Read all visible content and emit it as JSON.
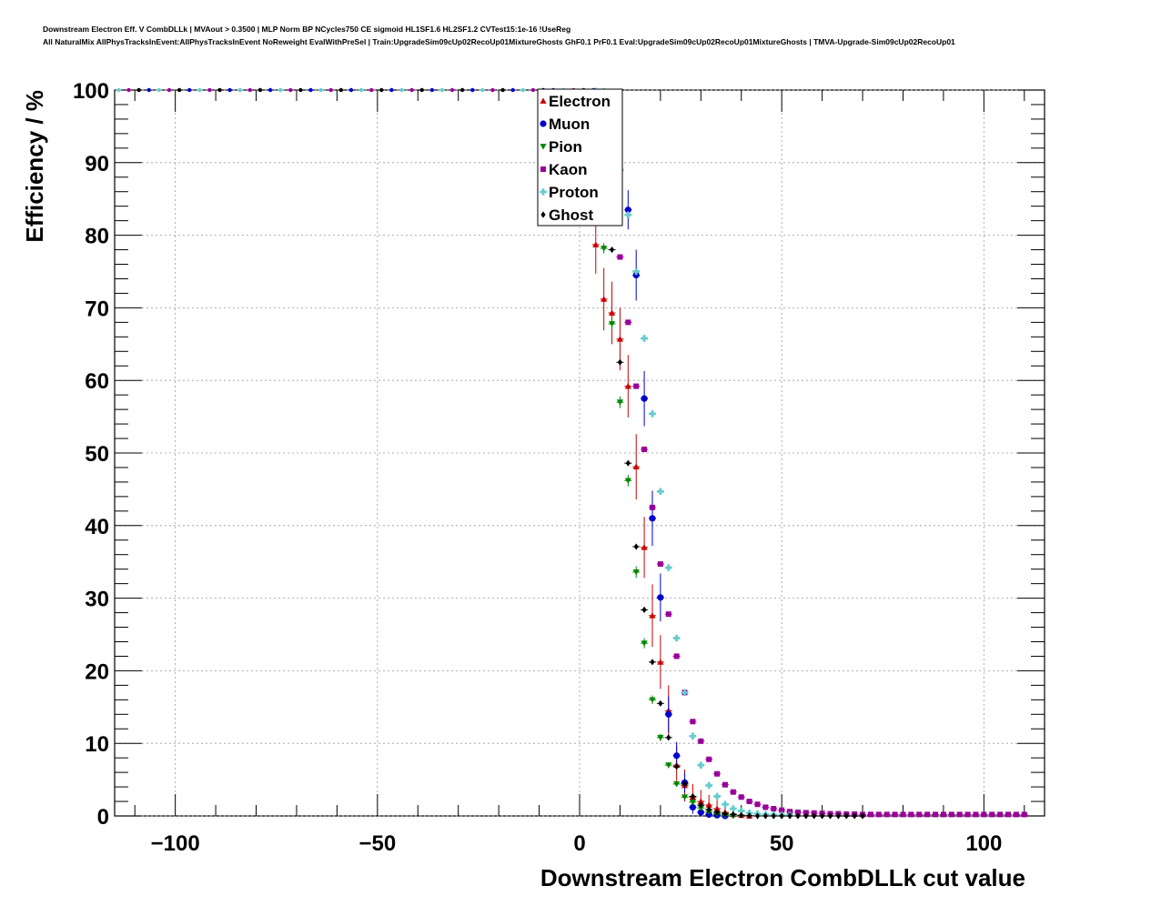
{
  "header": {
    "title_line1": "Downstream Electron Eff. V CombDLLk | MVAout > 0.3500 | MLP Norm BP NCycles750 CE sigmoid HL1SF1.6 HL2SF1.2 CVTest15:1e-16 !UseReg",
    "title_line2": "All NaturalMix AllPhysTracksInEvent:AllPhysTracksInEvent NoReweight EvalWithPreSel | Train:UpgradeSim09cUp02RecoUp01MixtureGhosts GhF0.1 PrF0.1 Eval:UpgradeSim09cUp02RecoUp01MixtureGhosts | TMVA-Upgrade-Sim09cUp02RecoUp01"
  },
  "chart_data": {
    "type": "scatter",
    "xlabel": "Downstream Electron CombDLLk cut value",
    "ylabel": "Efficiency / %",
    "xlim": [
      -115,
      115
    ],
    "ylim": [
      0,
      100
    ],
    "x_ticks": [
      -100,
      -50,
      0,
      50,
      100
    ],
    "x_tick_labels": [
      "−100",
      "−50",
      "0",
      "50",
      "100"
    ],
    "y_ticks": [
      0,
      10,
      20,
      30,
      40,
      50,
      60,
      70,
      80,
      90,
      100
    ],
    "y_tick_labels": [
      "0",
      "10",
      "20",
      "30",
      "40",
      "50",
      "60",
      "70",
      "80",
      "90",
      "100"
    ],
    "grid": true,
    "legend_position": "top-center",
    "series": [
      {
        "name": "Electron",
        "color": "#cc0000",
        "marker": "triangle-up",
        "points": [
          [
            -4,
            99.5
          ],
          [
            -2,
            98
          ],
          [
            0,
            95
          ],
          [
            2,
            88
          ],
          [
            4,
            78.7
          ],
          [
            6,
            71.2
          ],
          [
            8,
            69.3
          ],
          [
            10,
            65.7
          ],
          [
            12,
            59.2
          ],
          [
            14,
            48.1
          ],
          [
            16,
            37
          ],
          [
            18,
            27.6
          ],
          [
            20,
            21.2
          ],
          [
            22,
            14.5
          ],
          [
            24,
            7
          ],
          [
            26,
            4.2
          ],
          [
            28,
            2.6
          ],
          [
            30,
            2
          ],
          [
            32,
            1.5
          ],
          [
            34,
            1
          ],
          [
            36,
            0.5
          ],
          [
            38,
            0.2
          ],
          [
            40,
            0.1
          ],
          [
            42,
            0
          ]
        ],
        "errors": [
          0.5,
          1.5,
          2.5,
          3.5,
          4,
          4.3,
          4.3,
          4.3,
          4.3,
          4.5,
          4.2,
          4.3,
          3.7,
          3.5,
          2.7,
          2.2,
          1.8,
          1.6,
          1.4,
          1.2,
          0.8,
          0.5,
          0.3,
          0.1
        ]
      },
      {
        "name": "Muon",
        "color": "#0000cc",
        "marker": "circle",
        "points": [
          [
            4,
            99.8
          ],
          [
            6,
            97
          ],
          [
            8,
            92.5
          ],
          [
            10,
            89
          ],
          [
            12,
            83.5
          ],
          [
            14,
            74.5
          ],
          [
            16,
            57.5
          ],
          [
            18,
            41
          ],
          [
            20,
            30.1
          ],
          [
            22,
            14
          ],
          [
            24,
            8.3
          ],
          [
            26,
            4.6
          ],
          [
            28,
            1.2
          ],
          [
            30,
            0.5
          ],
          [
            32,
            0.2
          ],
          [
            34,
            0.1
          ],
          [
            36,
            0
          ]
        ],
        "errors": [
          0.5,
          1.2,
          1.8,
          2,
          2.7,
          3.5,
          3.8,
          3.8,
          3.3,
          2.5,
          1.9,
          1.4,
          0.9,
          0.5,
          0.3,
          0.2,
          0.1
        ]
      },
      {
        "name": "Pion",
        "color": "#008800",
        "marker": "triangle-down",
        "points": [
          [
            0,
            99
          ],
          [
            2,
            95.5
          ],
          [
            4,
            88
          ],
          [
            6,
            78.2
          ],
          [
            8,
            67.8
          ],
          [
            10,
            57
          ],
          [
            12,
            46.2
          ],
          [
            14,
            33.6
          ],
          [
            16,
            23.8
          ],
          [
            18,
            16
          ],
          [
            20,
            10.8
          ],
          [
            22,
            7
          ],
          [
            24,
            4.4
          ],
          [
            26,
            2.6
          ],
          [
            28,
            1.9
          ],
          [
            30,
            1.1
          ],
          [
            32,
            0.6
          ],
          [
            34,
            0.3
          ],
          [
            36,
            0.1
          ],
          [
            38,
            0
          ]
        ],
        "errors": [
          0.3,
          0.5,
          0.7,
          0.7,
          0.8,
          0.8,
          0.8,
          0.8,
          0.7,
          0.6,
          0.5,
          0.4,
          0.3,
          0.3,
          0.2,
          0.2,
          0.1,
          0.1,
          0.1,
          0
        ]
      },
      {
        "name": "Kaon",
        "color": "#990099",
        "marker": "square",
        "points": [
          [
            4,
            99.5
          ],
          [
            6,
            93
          ],
          [
            8,
            85.7
          ],
          [
            10,
            77
          ],
          [
            12,
            68
          ],
          [
            14,
            59.2
          ],
          [
            16,
            50.5
          ],
          [
            18,
            42.5
          ],
          [
            20,
            34.7
          ],
          [
            22,
            27.8
          ],
          [
            24,
            22
          ],
          [
            26,
            17
          ],
          [
            28,
            13
          ],
          [
            30,
            10.3
          ],
          [
            32,
            7.8
          ],
          [
            34,
            5.8
          ],
          [
            36,
            4.3
          ],
          [
            38,
            3.3
          ],
          [
            40,
            2.6
          ],
          [
            42,
            2
          ],
          [
            44,
            1.6
          ],
          [
            46,
            1.2
          ],
          [
            48,
            1
          ],
          [
            50,
            0.8
          ],
          [
            52,
            0.6
          ],
          [
            54,
            0.5
          ],
          [
            56,
            0.45
          ],
          [
            58,
            0.4
          ],
          [
            60,
            0.35
          ],
          [
            62,
            0.3
          ],
          [
            64,
            0.3
          ],
          [
            66,
            0.25
          ],
          [
            68,
            0.25
          ],
          [
            70,
            0.2
          ],
          [
            72,
            0.2
          ],
          [
            74,
            0.2
          ],
          [
            76,
            0.2
          ],
          [
            78,
            0.2
          ],
          [
            80,
            0.2
          ],
          [
            82,
            0.2
          ],
          [
            84,
            0.2
          ],
          [
            86,
            0.2
          ],
          [
            88,
            0.2
          ],
          [
            90,
            0.2
          ],
          [
            92,
            0.2
          ],
          [
            94,
            0.2
          ],
          [
            96,
            0.2
          ],
          [
            98,
            0.2
          ],
          [
            100,
            0.2
          ],
          [
            102,
            0.2
          ],
          [
            104,
            0.2
          ],
          [
            106,
            0.2
          ],
          [
            108,
            0.2
          ],
          [
            110,
            0.2
          ]
        ],
        "errors": []
      },
      {
        "name": "Proton",
        "color": "#66cccc",
        "marker": "cross",
        "points": [
          [
            4,
            99.8
          ],
          [
            6,
            98
          ],
          [
            8,
            94.2
          ],
          [
            10,
            89
          ],
          [
            12,
            82.8
          ],
          [
            14,
            75
          ],
          [
            16,
            65.8
          ],
          [
            18,
            55.4
          ],
          [
            20,
            44.7
          ],
          [
            22,
            34.2
          ],
          [
            24,
            24.5
          ],
          [
            26,
            17
          ],
          [
            28,
            11
          ],
          [
            30,
            7
          ],
          [
            32,
            4.2
          ],
          [
            34,
            2.7
          ],
          [
            36,
            1.6
          ],
          [
            38,
            1
          ],
          [
            40,
            0.7
          ],
          [
            42,
            0.4
          ],
          [
            44,
            0.3
          ],
          [
            46,
            0.2
          ],
          [
            48,
            0.15
          ],
          [
            50,
            0.1
          ],
          [
            52,
            0.1
          ]
        ],
        "errors": []
      },
      {
        "name": "Ghost",
        "color": "#000000",
        "marker": "diamond",
        "points": [
          [
            4,
            99.5
          ],
          [
            6,
            94
          ],
          [
            8,
            78
          ],
          [
            10,
            62.5
          ],
          [
            12,
            48.6
          ],
          [
            14,
            37.1
          ],
          [
            16,
            28.4
          ],
          [
            18,
            21.2
          ],
          [
            20,
            15.5
          ],
          [
            22,
            10.8
          ],
          [
            24,
            6.8
          ],
          [
            26,
            4.4
          ],
          [
            28,
            2.7
          ],
          [
            30,
            1.5
          ],
          [
            32,
            0.9
          ],
          [
            34,
            0.5
          ],
          [
            36,
            0.3
          ],
          [
            38,
            0.2
          ],
          [
            40,
            0.1
          ],
          [
            42,
            0.05
          ],
          [
            44,
            0
          ],
          [
            46,
            0
          ],
          [
            48,
            0
          ],
          [
            50,
            0
          ],
          [
            52,
            0
          ],
          [
            54,
            0
          ],
          [
            56,
            0
          ],
          [
            58,
            0
          ],
          [
            60,
            0
          ],
          [
            62,
            0
          ],
          [
            64,
            0
          ],
          [
            66,
            0
          ],
          [
            68,
            0
          ],
          [
            70,
            0
          ]
        ],
        "errors": []
      }
    ],
    "plateau": {
      "x_start": -114,
      "x_end": 6,
      "step": 2.5,
      "y": 100,
      "colors": [
        "#66cccc",
        "#990099",
        "#000000",
        "#0000cc"
      ]
    }
  }
}
